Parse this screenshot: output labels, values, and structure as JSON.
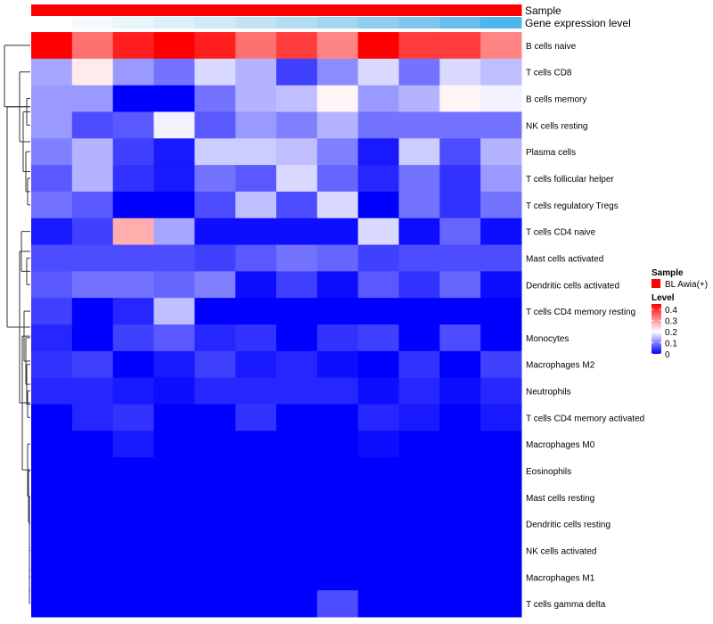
{
  "chart_data": {
    "type": "heatmap",
    "title": "",
    "column_annotations": [
      {
        "name": "Sample",
        "colors": [
          "#ff0000",
          "#ff0000",
          "#ff0000",
          "#ff0000",
          "#ff0000",
          "#ff0000",
          "#ff0000",
          "#ff0000",
          "#ff0000",
          "#ff0000",
          "#ff0000",
          "#ff0000"
        ]
      },
      {
        "name": "Gene expression level",
        "colors": [
          "#ffffff",
          "#f5fafd",
          "#e9f4fb",
          "#ddeff9",
          "#d1eaf7",
          "#c3e3f5",
          "#b4ddf3",
          "#a3d5f1",
          "#92cdf0",
          "#7fc5ee",
          "#6abcec",
          "#4fb5ea"
        ]
      }
    ],
    "rows": [
      "B cells naive",
      "T cells CD8",
      "B cells memory",
      "NK cells resting",
      "Plasma cells",
      "T cells follicular helper",
      "T cells regulatory  Tregs",
      "T cells CD4 naive",
      "Mast cells activated",
      "Dendritic cells activated",
      "T cells CD4 memory resting",
      "Monocytes",
      "Macrophages M2",
      "Neutrophils",
      "T cells CD4 memory activated",
      "Macrophages M0",
      "Eosinophils",
      "Mast cells resting",
      "Dendritic cells resting",
      "NK cells activated",
      "Macrophages M1",
      "T cells gamma delta"
    ],
    "values": [
      [
        0.45,
        0.34,
        0.42,
        0.46,
        0.42,
        0.34,
        0.39,
        0.32,
        0.45,
        0.39,
        0.39,
        0.32
      ],
      [
        0.13,
        0.22,
        0.12,
        0.09,
        0.17,
        0.14,
        0.05,
        0.11,
        0.17,
        0.09,
        0.17,
        0.15
      ],
      [
        0.12,
        0.12,
        0.0,
        0.0,
        0.09,
        0.14,
        0.15,
        0.21,
        0.12,
        0.14,
        0.21,
        0.19
      ],
      [
        0.12,
        0.06,
        0.07,
        0.19,
        0.07,
        0.12,
        0.1,
        0.14,
        0.09,
        0.09,
        0.09,
        0.09
      ],
      [
        0.1,
        0.14,
        0.05,
        0.02,
        0.16,
        0.16,
        0.15,
        0.1,
        0.02,
        0.16,
        0.06,
        0.14
      ],
      [
        0.07,
        0.14,
        0.04,
        0.02,
        0.09,
        0.07,
        0.17,
        0.08,
        0.03,
        0.09,
        0.04,
        0.12
      ],
      [
        0.09,
        0.07,
        0.0,
        0.0,
        0.06,
        0.15,
        0.06,
        0.17,
        0.0,
        0.09,
        0.04,
        0.09
      ],
      [
        0.02,
        0.05,
        0.28,
        0.13,
        0.01,
        0.01,
        0.01,
        0.01,
        0.17,
        0.01,
        0.08,
        0.01
      ],
      [
        0.06,
        0.06,
        0.06,
        0.06,
        0.05,
        0.07,
        0.09,
        0.08,
        0.05,
        0.06,
        0.06,
        0.06
      ],
      [
        0.07,
        0.09,
        0.09,
        0.08,
        0.1,
        0.01,
        0.05,
        0.01,
        0.07,
        0.04,
        0.08,
        0.01
      ],
      [
        0.05,
        0.0,
        0.03,
        0.15,
        0.0,
        0.0,
        0.0,
        0.0,
        0.0,
        0.0,
        0.0,
        0.0
      ],
      [
        0.03,
        0.0,
        0.05,
        0.07,
        0.03,
        0.04,
        0.0,
        0.04,
        0.05,
        0.0,
        0.06,
        0.0
      ],
      [
        0.04,
        0.05,
        0.0,
        0.02,
        0.05,
        0.02,
        0.03,
        0.01,
        0.0,
        0.04,
        0.0,
        0.05
      ],
      [
        0.03,
        0.03,
        0.02,
        0.01,
        0.03,
        0.03,
        0.03,
        0.03,
        0.01,
        0.03,
        0.01,
        0.03
      ],
      [
        0.0,
        0.03,
        0.04,
        0.0,
        0.0,
        0.04,
        0.0,
        0.0,
        0.03,
        0.02,
        0.0,
        0.02
      ],
      [
        0.0,
        0.0,
        0.02,
        0.0,
        0.0,
        0.0,
        0.0,
        0.0,
        0.01,
        0.0,
        0.0,
        0.0
      ],
      [
        0.0,
        0.0,
        0.0,
        0.0,
        0.0,
        0.0,
        0.0,
        0.0,
        0.0,
        0.0,
        0.0,
        0.0
      ],
      [
        0.0,
        0.0,
        0.0,
        0.0,
        0.0,
        0.0,
        0.0,
        0.0,
        0.0,
        0.0,
        0.0,
        0.0
      ],
      [
        0.0,
        0.0,
        0.0,
        0.0,
        0.0,
        0.0,
        0.0,
        0.0,
        0.0,
        0.0,
        0.0,
        0.0
      ],
      [
        0.0,
        0.0,
        0.0,
        0.0,
        0.0,
        0.0,
        0.0,
        0.0,
        0.0,
        0.0,
        0.0,
        0.0
      ],
      [
        0.0,
        0.0,
        0.0,
        0.0,
        0.0,
        0.0,
        0.0,
        0.0,
        0.0,
        0.0,
        0.0,
        0.0
      ],
      [
        0.0,
        0.0,
        0.0,
        0.0,
        0.0,
        0.0,
        0.0,
        0.06,
        0.0,
        0.0,
        0.0,
        0.0
      ]
    ],
    "color_scale": {
      "stops": [
        {
          "value": 0.0,
          "color": "#0000ff"
        },
        {
          "value": 0.2,
          "color": "#ffffff"
        },
        {
          "value": 0.45,
          "color": "#ff0000"
        }
      ]
    },
    "legend": {
      "sample_title": "Sample",
      "sample_entry": "BL Awia(+)",
      "sample_color": "#ff0000",
      "level_title": "Level",
      "level_ticks": [
        {
          "value": 0.4,
          "label": "0.4"
        },
        {
          "value": 0.3,
          "label": "0.3"
        },
        {
          "value": 0.2,
          "label": "0.2"
        },
        {
          "value": 0.1,
          "label": "0.1"
        },
        {
          "value": 0.0,
          "label": "0"
        }
      ],
      "placement": "right"
    },
    "dendrogram": "rows"
  }
}
